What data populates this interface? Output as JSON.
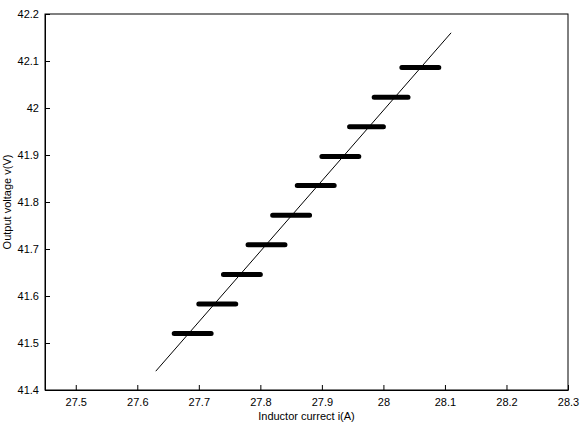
{
  "chart_data": {
    "type": "line",
    "x_label": "Inductor currect i(A)",
    "y_label": "Output voltage v(V)",
    "xlim": [
      27.45,
      28.3
    ],
    "xticks": [
      27.5,
      27.6,
      27.7,
      27.8,
      27.9,
      28,
      28.1,
      28.2,
      28.3
    ],
    "ylim": [
      41.4,
      42.2
    ],
    "yticks": [
      41.4,
      41.5,
      41.6,
      41.7,
      41.8,
      41.9,
      42,
      42.1,
      42.2
    ],
    "grid": false,
    "series": [
      {
        "color": "#000000",
        "line_style": "solid",
        "x": [
          27.63,
          28.11
        ],
        "values": [
          41.44,
          42.16
        ]
      },
      {
        "color": "#000000",
        "line_style": "thick",
        "x": [
          27.66,
          27.72,
          27.72,
          27.7,
          27.76,
          27.76,
          27.74,
          27.8,
          27.8,
          27.78,
          27.84,
          27.84,
          27.82,
          27.88,
          27.88,
          27.86,
          27.92,
          27.92,
          27.9,
          27.96,
          27.96,
          27.945,
          28.0,
          28.0,
          27.985,
          28.04,
          28.04,
          28.03,
          28.09
        ],
        "values": [
          41.52,
          41.52,
          null,
          41.583,
          41.583,
          null,
          41.646,
          41.646,
          null,
          41.709,
          41.709,
          null,
          41.772,
          41.772,
          null,
          41.835,
          41.835,
          null,
          41.897,
          41.897,
          null,
          41.96,
          41.96,
          null,
          42.023,
          42.023,
          null,
          42.086,
          42.086
        ]
      }
    ]
  }
}
